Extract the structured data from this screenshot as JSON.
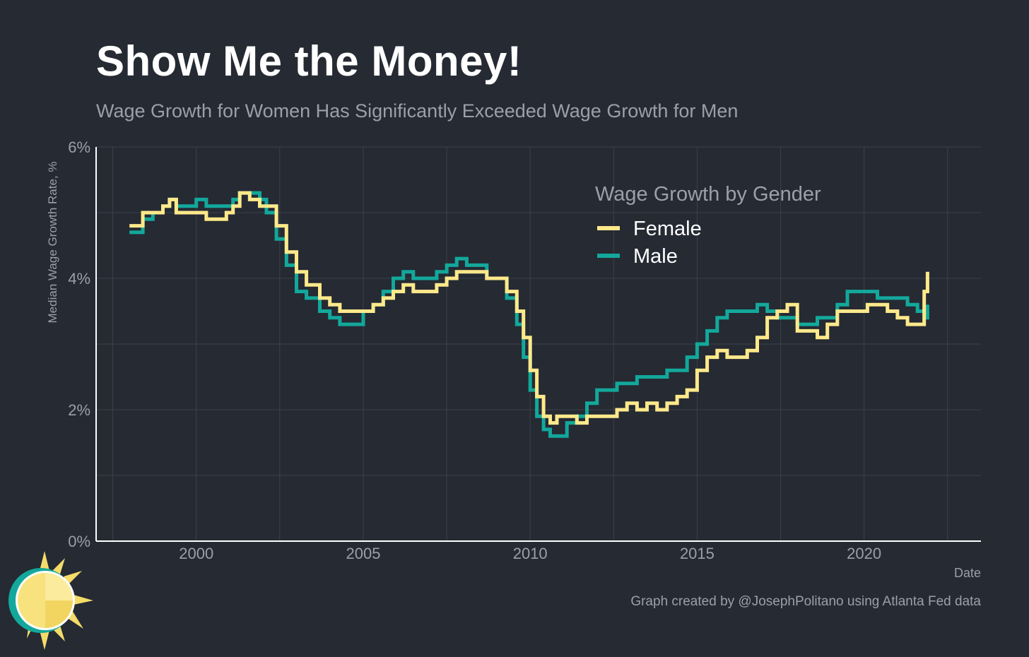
{
  "title": "Show Me the Money!",
  "subtitle": "Wage Growth for Women Has Significantly Exceeded Wage Growth for Men",
  "credit": "Graph created by @JosephPolitano using Atlanta Fed data",
  "colors": {
    "background": "#252a33",
    "female": "#ffe98a",
    "male": "#13a89b",
    "grid": "#3c414a",
    "axis": "#ffffff",
    "text_muted": "#9ba0a8"
  },
  "chart_data": {
    "type": "line",
    "title": "Show Me the Money!",
    "subtitle": "Wage Growth for Women Has Significantly Exceeded Wage Growth for Men",
    "xlabel": "Date",
    "ylabel": "Median Wage Growth Rate, %",
    "xlim": [
      1997.0,
      2023.5
    ],
    "ylim": [
      0,
      6
    ],
    "x_ticks": [
      2000,
      2005,
      2010,
      2015,
      2020
    ],
    "x_tick_labels": [
      "2000",
      "2005",
      "2010",
      "2015",
      "2020"
    ],
    "y_ticks": [
      0,
      2,
      4,
      6
    ],
    "y_tick_labels": [
      "0%",
      "2%",
      "4%",
      "6%"
    ],
    "grid": true,
    "legend": {
      "title": "Wage Growth by Gender",
      "position": "top-right"
    },
    "series": [
      {
        "name": "Female",
        "x": [
          1998.0,
          1998.2,
          1998.4,
          1998.7,
          1999.0,
          1999.2,
          1999.4,
          1999.8,
          2000.0,
          2000.3,
          2000.6,
          2000.9,
          2001.1,
          2001.3,
          2001.6,
          2001.9,
          2002.1,
          2002.4,
          2002.7,
          2003.0,
          2003.3,
          2003.7,
          2004.0,
          2004.3,
          2004.6,
          2005.0,
          2005.3,
          2005.6,
          2005.9,
          2006.2,
          2006.5,
          2006.9,
          2007.2,
          2007.5,
          2007.8,
          2008.1,
          2008.4,
          2008.7,
          2009.0,
          2009.3,
          2009.6,
          2009.8,
          2010.0,
          2010.2,
          2010.4,
          2010.6,
          2010.8,
          2011.1,
          2011.4,
          2011.7,
          2012.0,
          2012.3,
          2012.6,
          2012.9,
          2013.2,
          2013.5,
          2013.8,
          2014.1,
          2014.4,
          2014.7,
          2015.0,
          2015.3,
          2015.6,
          2015.9,
          2016.2,
          2016.5,
          2016.8,
          2017.1,
          2017.4,
          2017.7,
          2018.0,
          2018.3,
          2018.6,
          2018.9,
          2019.2,
          2019.5,
          2019.8,
          2020.1,
          2020.4,
          2020.7,
          2021.0,
          2021.3,
          2021.6,
          2021.8,
          2021.9
        ],
        "values": [
          4.8,
          4.8,
          5.0,
          5.0,
          5.1,
          5.2,
          5.0,
          5.0,
          5.0,
          4.9,
          4.9,
          5.0,
          5.1,
          5.3,
          5.2,
          5.1,
          5.1,
          4.8,
          4.4,
          4.1,
          3.9,
          3.7,
          3.6,
          3.5,
          3.5,
          3.5,
          3.6,
          3.7,
          3.8,
          3.9,
          3.8,
          3.8,
          3.9,
          4.0,
          4.1,
          4.1,
          4.1,
          4.0,
          4.0,
          3.8,
          3.5,
          3.1,
          2.6,
          2.2,
          1.9,
          1.8,
          1.9,
          1.9,
          1.8,
          1.9,
          1.9,
          1.9,
          2.0,
          2.1,
          2.0,
          2.1,
          2.0,
          2.1,
          2.2,
          2.3,
          2.6,
          2.8,
          2.9,
          2.8,
          2.8,
          2.9,
          3.1,
          3.4,
          3.5,
          3.6,
          3.2,
          3.2,
          3.1,
          3.3,
          3.5,
          3.5,
          3.5,
          3.6,
          3.6,
          3.5,
          3.4,
          3.3,
          3.3,
          3.8,
          4.1
        ]
      },
      {
        "name": "Male",
        "x": [
          1998.0,
          1998.2,
          1998.4,
          1998.7,
          1999.0,
          1999.2,
          1999.4,
          1999.8,
          2000.0,
          2000.3,
          2000.6,
          2000.9,
          2001.1,
          2001.3,
          2001.6,
          2001.9,
          2002.1,
          2002.4,
          2002.7,
          2003.0,
          2003.3,
          2003.7,
          2004.0,
          2004.3,
          2004.6,
          2005.0,
          2005.3,
          2005.6,
          2005.9,
          2006.2,
          2006.5,
          2006.9,
          2007.2,
          2007.5,
          2007.8,
          2008.1,
          2008.4,
          2008.7,
          2009.0,
          2009.3,
          2009.6,
          2009.8,
          2010.0,
          2010.2,
          2010.4,
          2010.6,
          2010.8,
          2011.1,
          2011.4,
          2011.7,
          2012.0,
          2012.3,
          2012.6,
          2012.9,
          2013.2,
          2013.5,
          2013.8,
          2014.1,
          2014.4,
          2014.7,
          2015.0,
          2015.3,
          2015.6,
          2015.9,
          2016.2,
          2016.5,
          2016.8,
          2017.1,
          2017.4,
          2017.7,
          2018.0,
          2018.3,
          2018.6,
          2018.9,
          2019.2,
          2019.5,
          2019.8,
          2020.1,
          2020.4,
          2020.7,
          2021.0,
          2021.3,
          2021.6,
          2021.8,
          2021.9
        ],
        "values": [
          4.7,
          4.7,
          4.9,
          5.0,
          5.1,
          5.2,
          5.1,
          5.1,
          5.2,
          5.1,
          5.1,
          5.1,
          5.2,
          5.3,
          5.3,
          5.2,
          5.0,
          4.6,
          4.2,
          3.8,
          3.7,
          3.5,
          3.4,
          3.3,
          3.3,
          3.5,
          3.6,
          3.8,
          4.0,
          4.1,
          4.0,
          4.0,
          4.1,
          4.2,
          4.3,
          4.2,
          4.2,
          4.0,
          4.0,
          3.7,
          3.3,
          2.8,
          2.3,
          1.9,
          1.7,
          1.6,
          1.6,
          1.8,
          1.9,
          2.1,
          2.3,
          2.3,
          2.4,
          2.4,
          2.5,
          2.5,
          2.5,
          2.6,
          2.6,
          2.8,
          3.0,
          3.2,
          3.4,
          3.5,
          3.5,
          3.5,
          3.6,
          3.5,
          3.4,
          3.4,
          3.3,
          3.3,
          3.4,
          3.4,
          3.6,
          3.8,
          3.8,
          3.8,
          3.7,
          3.7,
          3.7,
          3.6,
          3.5,
          3.4,
          3.6
        ]
      }
    ]
  }
}
